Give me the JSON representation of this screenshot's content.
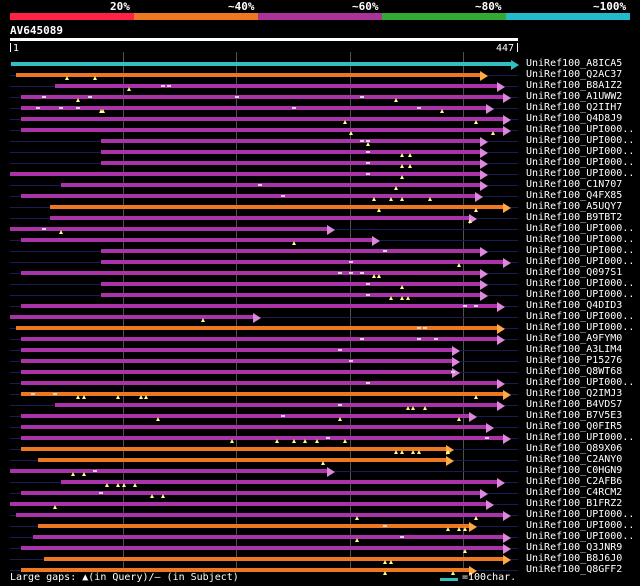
{
  "header": {
    "percent_labels": [
      {
        "text": "20%",
        "color": "#ff2244"
      },
      {
        "text": "~40%",
        "color": "#ee7722"
      },
      {
        "text": "~60%",
        "color": "#aa3399"
      },
      {
        "text": "~80%",
        "color": "#33aa33"
      },
      {
        "text": "~100%",
        "color": "#22bbcc"
      }
    ],
    "accession": "AV645089",
    "ruler_start": "1",
    "ruler_end": "447"
  },
  "colors": {
    "query": "#30c0c0",
    "orange": "#ee7722",
    "purple": "#aa33aa",
    "head_purple": "#dd88dd",
    "head_orange": "#ffaa44",
    "base": "#1a1a55",
    "gap_query": "#ffff88",
    "gap_subject": "#d8d8d8"
  },
  "hits": [
    {
      "name": "UniRef100_A8ICA5",
      "color": "query",
      "start": 1,
      "end": 447,
      "gaps_q": [],
      "gaps_s": []
    },
    {
      "name": "UniRef100_Q2AC37",
      "color": "orange",
      "start": 5,
      "end": 420,
      "gaps_q": [
        50,
        75
      ],
      "gaps_s": []
    },
    {
      "name": "UniRef100_B8A1Z2",
      "color": "purple",
      "start": 40,
      "end": 435,
      "gaps_q": [
        105
      ],
      "gaps_s": [
        140,
        135
      ]
    },
    {
      "name": "UniRef100_A1UWW2",
      "color": "purple",
      "start": 10,
      "end": 440,
      "gaps_q": [
        60,
        340
      ],
      "gaps_s": [
        30,
        70,
        200,
        310
      ]
    },
    {
      "name": "UniRef100_Q2IIH7",
      "color": "purple",
      "start": 10,
      "end": 425,
      "gaps_q": [
        80,
        82,
        380
      ],
      "gaps_s": [
        25,
        45,
        60,
        250,
        360
      ]
    },
    {
      "name": "UniRef100_Q4D8J9",
      "color": "purple",
      "start": 10,
      "end": 440,
      "gaps_q": [
        295,
        410
      ],
      "gaps_s": []
    },
    {
      "name": "UniRef100_UPI000..",
      "color": "purple",
      "start": 10,
      "end": 440,
      "gaps_q": [
        300,
        425
      ],
      "gaps_s": []
    },
    {
      "name": "UniRef100_UPI000..",
      "color": "purple",
      "start": 80,
      "end": 420,
      "gaps_q": [
        315
      ],
      "gaps_s": [
        310,
        315
      ]
    },
    {
      "name": "UniRef100_UPI000..",
      "color": "purple",
      "start": 80,
      "end": 420,
      "gaps_q": [
        345,
        352
      ],
      "gaps_s": [
        315
      ]
    },
    {
      "name": "UniRef100_UPI000..",
      "color": "purple",
      "start": 80,
      "end": 420,
      "gaps_q": [
        345,
        352
      ],
      "gaps_s": [
        315
      ]
    },
    {
      "name": "UniRef100_UPI000..",
      "color": "purple",
      "start": 0,
      "end": 420,
      "gaps_q": [
        345
      ],
      "gaps_s": [
        315
      ]
    },
    {
      "name": "UniRef100_C1N707",
      "color": "purple",
      "start": 45,
      "end": 420,
      "gaps_q": [
        340
      ],
      "gaps_s": [
        220
      ]
    },
    {
      "name": "UniRef100_Q4FX85",
      "color": "purple",
      "start": 10,
      "end": 415,
      "gaps_q": [
        320,
        335,
        345,
        370
      ],
      "gaps_s": [
        240
      ]
    },
    {
      "name": "UniRef100_A5UQY7",
      "color": "orange",
      "start": 35,
      "end": 440,
      "gaps_q": [
        325,
        410
      ],
      "gaps_s": []
    },
    {
      "name": "UniRef100_B9TBT2",
      "color": "purple",
      "start": 35,
      "end": 410,
      "gaps_q": [
        405
      ],
      "gaps_s": []
    },
    {
      "name": "UniRef100_UPI000..",
      "color": "purple",
      "start": 0,
      "end": 285,
      "gaps_q": [
        45
      ],
      "gaps_s": [
        30
      ]
    },
    {
      "name": "UniRef100_UPI000..",
      "color": "purple",
      "start": 10,
      "end": 325,
      "gaps_q": [
        250
      ],
      "gaps_s": []
    },
    {
      "name": "UniRef100_UPI000..",
      "color": "purple",
      "start": 80,
      "end": 420,
      "gaps_q": [],
      "gaps_s": [
        330
      ]
    },
    {
      "name": "UniRef100_UPI000..",
      "color": "purple",
      "start": 80,
      "end": 440,
      "gaps_q": [
        395
      ],
      "gaps_s": [
        300
      ]
    },
    {
      "name": "UniRef100_Q097S1",
      "color": "purple",
      "start": 10,
      "end": 420,
      "gaps_q": [
        320,
        325
      ],
      "gaps_s": [
        290,
        300,
        310
      ]
    },
    {
      "name": "UniRef100_UPI000..",
      "color": "purple",
      "start": 80,
      "end": 420,
      "gaps_q": [
        345
      ],
      "gaps_s": [
        315
      ]
    },
    {
      "name": "UniRef100_UPI000..",
      "color": "purple",
      "start": 80,
      "end": 420,
      "gaps_q": [
        335,
        345,
        350
      ],
      "gaps_s": [
        315
      ]
    },
    {
      "name": "UniRef100_Q4DID3",
      "color": "purple",
      "start": 10,
      "end": 435,
      "gaps_q": [],
      "gaps_s": [
        400,
        410
      ]
    },
    {
      "name": "UniRef100_UPI000..",
      "color": "purple",
      "start": 0,
      "end": 220,
      "gaps_q": [
        170
      ],
      "gaps_s": []
    },
    {
      "name": "UniRef100_UPI000..",
      "color": "orange",
      "start": 5,
      "end": 435,
      "gaps_q": [],
      "gaps_s": [
        360,
        365
      ]
    },
    {
      "name": "UniRef100_A9FYM0",
      "color": "purple",
      "start": 10,
      "end": 435,
      "gaps_q": [],
      "gaps_s": [
        310,
        360,
        375
      ]
    },
    {
      "name": "UniRef100_A3LIM4",
      "color": "purple",
      "start": 10,
      "end": 395,
      "gaps_q": [],
      "gaps_s": [
        290
      ]
    },
    {
      "name": "UniRef100_P15276",
      "color": "purple",
      "start": 10,
      "end": 395,
      "gaps_q": [],
      "gaps_s": [
        300
      ]
    },
    {
      "name": "UniRef100_Q8WT68",
      "color": "purple",
      "start": 10,
      "end": 395,
      "gaps_q": [],
      "gaps_s": [
        390
      ]
    },
    {
      "name": "UniRef100_UPI000..",
      "color": "purple",
      "start": 10,
      "end": 435,
      "gaps_q": [],
      "gaps_s": [
        315
      ]
    },
    {
      "name": "UniRef100_Q2IMJ3",
      "color": "orange",
      "start": 10,
      "end": 440,
      "gaps_q": [
        60,
        65,
        95,
        115,
        120,
        410
      ],
      "gaps_s": [
        20,
        40
      ]
    },
    {
      "name": "UniRef100_B4VDS7",
      "color": "purple",
      "start": 40,
      "end": 435,
      "gaps_q": [
        350,
        355,
        365
      ],
      "gaps_s": [
        290
      ]
    },
    {
      "name": "UniRef100_B7V5E3",
      "color": "purple",
      "start": 10,
      "end": 410,
      "gaps_q": [
        130,
        290,
        395
      ],
      "gaps_s": [
        240
      ]
    },
    {
      "name": "UniRef100_Q0FIR5",
      "color": "purple",
      "start": 10,
      "end": 425,
      "gaps_q": [],
      "gaps_s": []
    },
    {
      "name": "UniRef100_UPI000..",
      "color": "purple",
      "start": 10,
      "end": 440,
      "gaps_q": [
        195,
        235,
        250,
        260,
        270,
        295
      ],
      "gaps_s": [
        280,
        420
      ]
    },
    {
      "name": "UniRef100_Q89X06",
      "color": "orange",
      "start": 10,
      "end": 390,
      "gaps_q": [
        340,
        345,
        355,
        360,
        385
      ],
      "gaps_s": []
    },
    {
      "name": "UniRef100_C2ANY0",
      "color": "orange",
      "start": 25,
      "end": 390,
      "gaps_q": [
        275
      ],
      "gaps_s": []
    },
    {
      "name": "UniRef100_C0HGN9",
      "color": "purple",
      "start": 0,
      "end": 285,
      "gaps_q": [
        55,
        65
      ],
      "gaps_s": [
        75
      ]
    },
    {
      "name": "UniRef100_C2AFB6",
      "color": "purple",
      "start": 45,
      "end": 435,
      "gaps_q": [
        85,
        95,
        100,
        110
      ],
      "gaps_s": []
    },
    {
      "name": "UniRef100_C4RCM2",
      "color": "purple",
      "start": 10,
      "end": 420,
      "gaps_q": [
        125,
        135
      ],
      "gaps_s": [
        80
      ]
    },
    {
      "name": "UniRef100_B1FRZ2",
      "color": "purple",
      "start": 0,
      "end": 425,
      "gaps_q": [
        40
      ],
      "gaps_s": []
    },
    {
      "name": "UniRef100_UPI000..",
      "color": "purple",
      "start": 5,
      "end": 440,
      "gaps_q": [
        305,
        410
      ],
      "gaps_s": []
    },
    {
      "name": "UniRef100_UPI000..",
      "color": "orange",
      "start": 25,
      "end": 410,
      "gaps_q": [
        385,
        395,
        400
      ],
      "gaps_s": [
        330
      ]
    },
    {
      "name": "UniRef100_UPI000..",
      "color": "purple",
      "start": 20,
      "end": 440,
      "gaps_q": [
        305
      ],
      "gaps_s": [
        345
      ]
    },
    {
      "name": "UniRef100_Q3JNR9",
      "color": "purple",
      "start": 10,
      "end": 440,
      "gaps_q": [
        400
      ],
      "gaps_s": []
    },
    {
      "name": "UniRef100_B8J6J0",
      "color": "orange",
      "start": 30,
      "end": 440,
      "gaps_q": [
        330,
        335
      ],
      "gaps_s": []
    },
    {
      "name": "UniRef100_Q8GFF2",
      "color": "orange",
      "start": 10,
      "end": 410,
      "gaps_q": [
        330,
        390
      ],
      "gaps_s": []
    }
  ],
  "footer": {
    "legend_label": "Large gaps:",
    "legend_query": "▲(in Query)/",
    "legend_subject": "— (in Subject)",
    "scale_label": "=100char."
  }
}
